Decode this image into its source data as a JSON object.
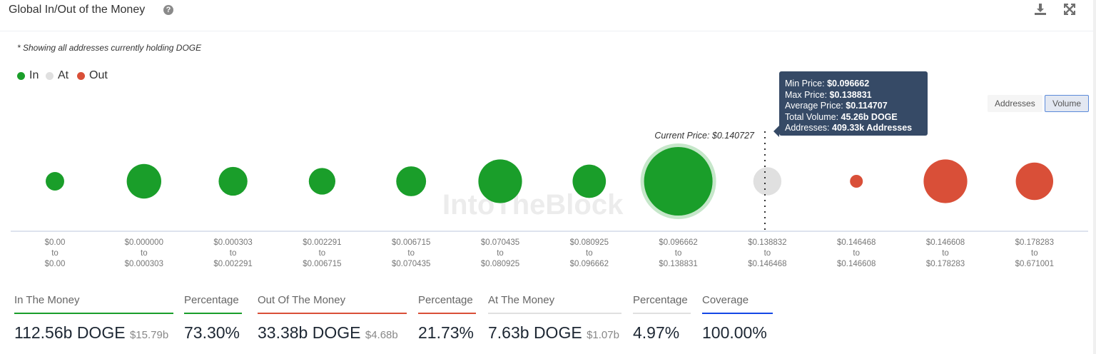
{
  "header": {
    "title": "Global In/Out of the Money",
    "help_icon": "question-circle-icon",
    "download_icon": "download-icon",
    "expand_icon": "expand-icon"
  },
  "note": "* Showing all addresses currently holding DOGE",
  "legend": [
    {
      "label": "In",
      "color": "#1a9e2a"
    },
    {
      "label": "At",
      "color": "#e0e0e0"
    },
    {
      "label": "Out",
      "color": "#d94f38"
    }
  ],
  "toggle": {
    "addresses": "Addresses",
    "volume": "Volume",
    "selected": "Volume"
  },
  "watermark": "IntoTheBlock",
  "chart_data": {
    "type": "bubble",
    "current_price_label": "Current Price: $0.140727",
    "categories": [
      {
        "from": "$0.00",
        "to": "$0.00",
        "status": "in",
        "volume_b": 3.3
      },
      {
        "from": "$0.000000",
        "to": "$0.000303",
        "status": "in",
        "volume_b": 11.5
      },
      {
        "from": "$0.000303",
        "to": "$0.002291",
        "status": "in",
        "volume_b": 8.0
      },
      {
        "from": "$0.002291",
        "to": "$0.006715",
        "status": "in",
        "volume_b": 6.8
      },
      {
        "from": "$0.006715",
        "to": "$0.070435",
        "status": "in",
        "volume_b": 8.6
      },
      {
        "from": "$0.070435",
        "to": "$0.080925",
        "status": "in",
        "volume_b": 18.4
      },
      {
        "from": "$0.080925",
        "to": "$0.096662",
        "status": "in",
        "volume_b": 10.7
      },
      {
        "from": "$0.096662",
        "to": "$0.138831",
        "status": "in",
        "volume_b": 45.26
      },
      {
        "from": "$0.138832",
        "to": "$0.146468",
        "status": "at",
        "volume_b": 7.63
      },
      {
        "from": "$0.146468",
        "to": "$0.146608",
        "status": "out",
        "volume_b": 1.5
      },
      {
        "from": "$0.146608",
        "to": "$0.178283",
        "status": "out",
        "volume_b": 18.4
      },
      {
        "from": "$0.178283",
        "to": "$0.671001",
        "status": "out",
        "volume_b": 13.5
      }
    ],
    "sep": "to",
    "highlighted_index": 7,
    "colors": {
      "in": "#1a9e2a",
      "at": "#e0e0e0",
      "out": "#d94f38"
    }
  },
  "tooltip": {
    "min_label": "Min Price:",
    "min": "$0.096662",
    "max_label": "Max Price:",
    "max": "$0.138831",
    "avg_label": "Average Price:",
    "avg": "$0.114707",
    "vol_label": "Total Volume:",
    "vol": "45.26b DOGE",
    "addr_label": "Addresses:",
    "addr": "409.33k Addresses"
  },
  "stats": {
    "in": {
      "label": "In The Money",
      "value": "112.56b DOGE",
      "usd": "$15.79b",
      "color": "#1a9e2a"
    },
    "in_pct": {
      "label": "Percentage",
      "value": "73.30%"
    },
    "out": {
      "label": "Out Of The Money",
      "value": "33.38b DOGE",
      "usd": "$4.68b",
      "color": "#d94f38"
    },
    "out_pct": {
      "label": "Percentage",
      "value": "21.73%"
    },
    "at": {
      "label": "At The Money",
      "value": "7.63b DOGE",
      "usd": "$1.07b",
      "color": "#e0e0e0"
    },
    "at_pct": {
      "label": "Percentage",
      "value": "4.97%"
    },
    "coverage": {
      "label": "Coverage",
      "value": "100.00%",
      "color": "#1447e6"
    }
  }
}
